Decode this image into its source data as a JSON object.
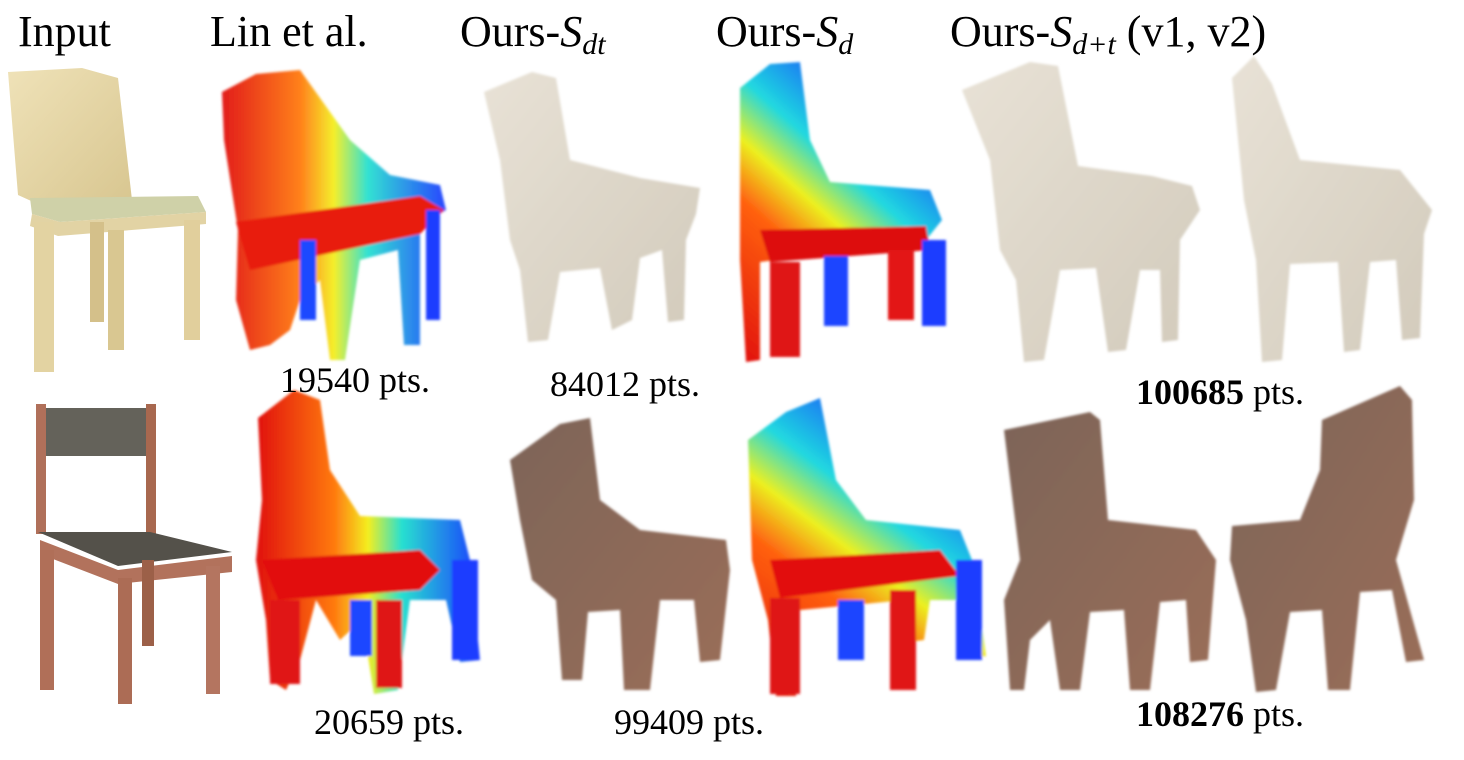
{
  "headers": {
    "input": "Input",
    "lin": "Lin et al.",
    "ours_prefix": "Ours-",
    "sdt_base": "S",
    "sdt_sub": "dt",
    "sd_base": "S",
    "sd_sub": "d",
    "sdt2_base": "S",
    "sdt2_sub": "d+t",
    "sdt2_suffix": " (v1, v2)"
  },
  "row1": {
    "lin_pts_num": "19540",
    "sdt_pts_num": "84012",
    "ours_pts_num": "100685",
    "pts_unit": " pts."
  },
  "row2": {
    "lin_pts_num": "20659",
    "sdt_pts_num": "99409",
    "ours_pts_num": "108276",
    "pts_unit": " pts."
  },
  "colors": {
    "depth_near": "#e01010",
    "depth_far": "#1a3cff",
    "chair1_wood": "#e6d7a8",
    "chair1_pc": "#ddd6c8",
    "chair2_frame": "#b0705a",
    "chair2_seat": "#54514a",
    "chair2_pc": "#8a6a58"
  }
}
